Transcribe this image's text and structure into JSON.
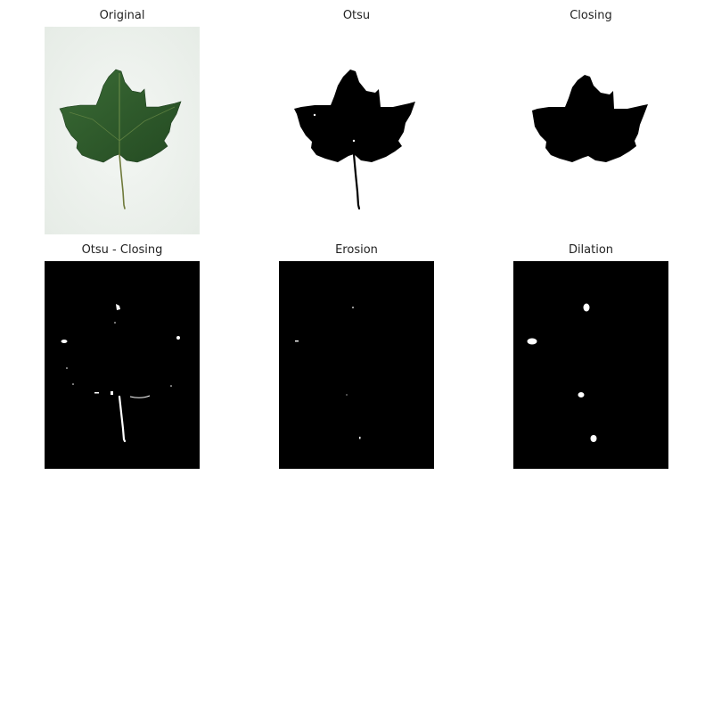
{
  "panels": [
    {
      "title": "Original"
    },
    {
      "title": "Otsu"
    },
    {
      "title": "Closing"
    },
    {
      "title": "Otsu - Closing"
    },
    {
      "title": "Erosion"
    },
    {
      "title": "Dilation"
    }
  ],
  "colors": {
    "background": "#ffffff",
    "leaf_green": "#2f5a2c",
    "leaf_dark": "#1f3f1f",
    "photo_background": "#eef3ee",
    "mask_black": "#000000",
    "mask_white": "#ffffff",
    "title_text": "#222222"
  }
}
